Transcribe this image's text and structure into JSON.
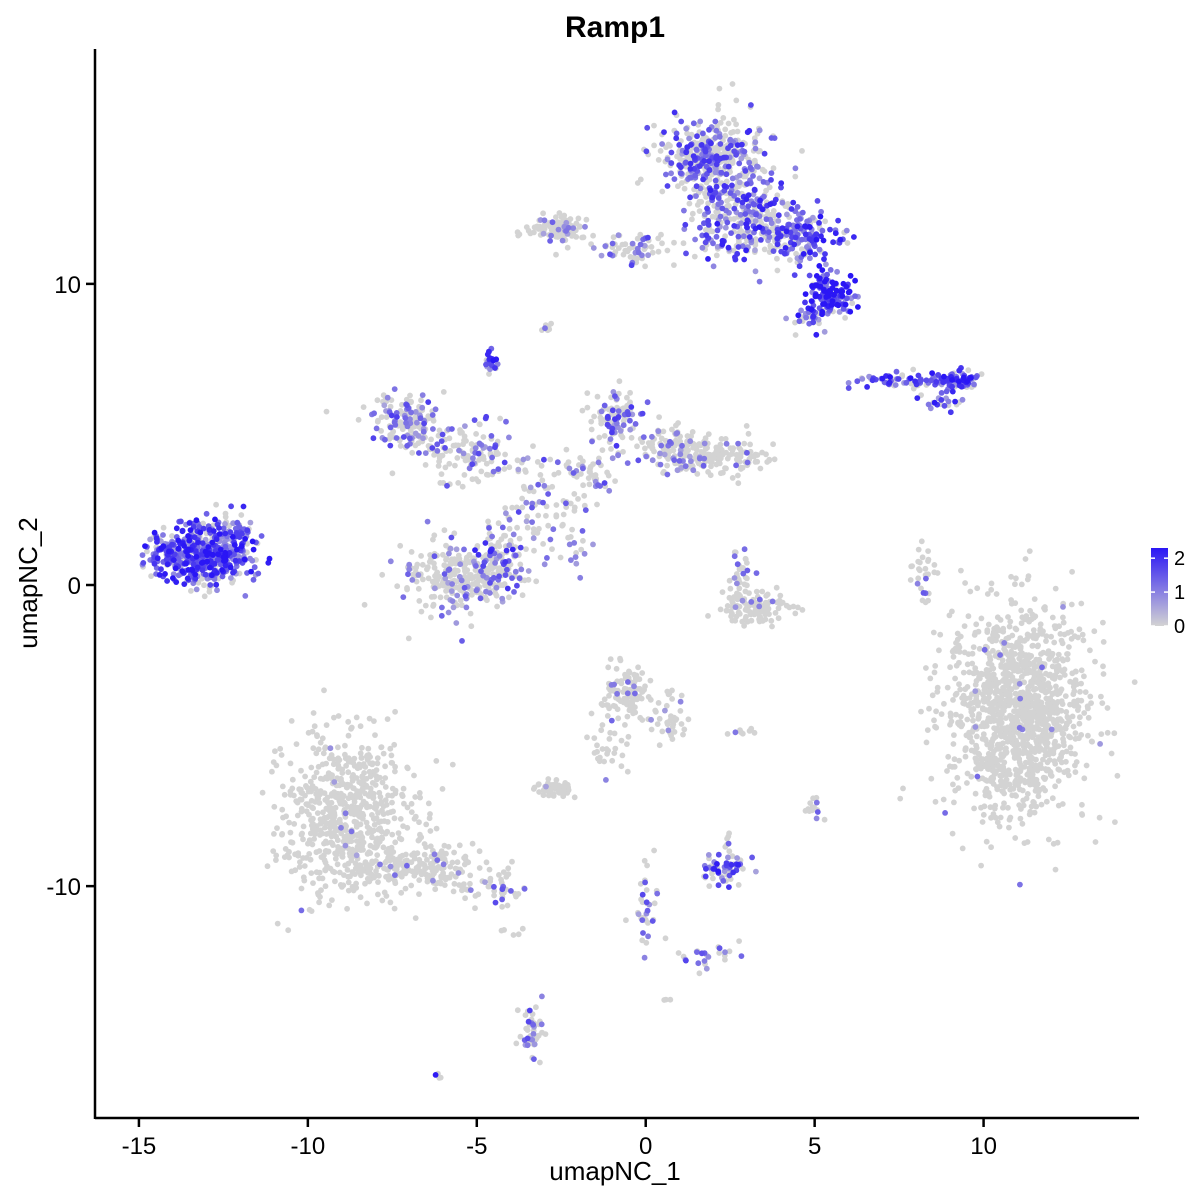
{
  "chart_data": {
    "type": "scatter",
    "title": "Ramp1",
    "xlabel": "umapNC_1",
    "ylabel": "umapNC_2",
    "xlim": [
      -16.3,
      14.6
    ],
    "ylim": [
      -17.7,
      17.8
    ],
    "x_ticks": [
      -15,
      -10,
      -5,
      0,
      5,
      10
    ],
    "x_tick_labels": [
      "-15",
      "-10",
      "-5",
      "0",
      "5",
      "10"
    ],
    "y_ticks": [
      -10,
      0,
      10
    ],
    "y_tick_labels": [
      "-10",
      "0",
      "10"
    ],
    "grid": false,
    "legend": {
      "placement": "right",
      "type": "colorbar",
      "range": [
        0,
        2.3
      ],
      "ticks": [
        0,
        1,
        2
      ],
      "tick_labels": [
        "0",
        "1",
        "2"
      ],
      "low_color": "#d3d3d3",
      "high_color": "#2a16f5"
    },
    "clusters": [
      {
        "cx": 11.0,
        "cy": -4.2,
        "sx": 1.2,
        "sy": 2.0,
        "n": 1300,
        "expr": 0.01
      },
      {
        "cx": -8.8,
        "cy": -7.6,
        "sx": 1.1,
        "sy": 1.6,
        "n": 650,
        "expr": 0.01
      },
      {
        "cx": -6.8,
        "cy": -9.4,
        "sx": 1.3,
        "sy": 0.5,
        "n": 200,
        "expr": 0.05
      },
      {
        "cx": -4.5,
        "cy": -10.1,
        "sx": 0.5,
        "sy": 0.3,
        "n": 40,
        "expr": 0.35
      },
      {
        "cx": -13.2,
        "cy": 1.0,
        "sx": 0.85,
        "sy": 0.55,
        "n": 500,
        "expr": 0.75
      },
      {
        "cx": -12.2,
        "cy": 1.6,
        "sx": 0.4,
        "sy": 0.5,
        "n": 60,
        "expr": 0.5
      },
      {
        "cx": 1.9,
        "cy": 14.2,
        "sx": 0.9,
        "sy": 0.75,
        "n": 420,
        "expr": 0.45
      },
      {
        "cx": 2.9,
        "cy": 12.2,
        "sx": 0.9,
        "sy": 0.8,
        "n": 300,
        "expr": 0.55
      },
      {
        "cx": 4.6,
        "cy": 11.6,
        "sx": 0.7,
        "sy": 0.5,
        "n": 150,
        "expr": 0.7
      },
      {
        "cx": 5.4,
        "cy": 9.7,
        "sx": 0.4,
        "sy": 0.35,
        "n": 130,
        "expr": 0.95
      },
      {
        "cx": 4.8,
        "cy": 8.9,
        "sx": 0.35,
        "sy": 0.3,
        "n": 40,
        "expr": 0.75
      },
      {
        "cx": -2.6,
        "cy": 11.8,
        "sx": 0.5,
        "sy": 0.25,
        "n": 130,
        "expr": 0.12
      },
      {
        "cx": -0.5,
        "cy": 11.2,
        "sx": 1.0,
        "sy": 0.3,
        "n": 70,
        "expr": 0.3
      },
      {
        "cx": 9.2,
        "cy": 6.8,
        "sx": 0.4,
        "sy": 0.2,
        "n": 80,
        "expr": 0.8
      },
      {
        "cx": 7.6,
        "cy": 6.8,
        "sx": 0.8,
        "sy": 0.15,
        "n": 60,
        "expr": 0.65
      },
      {
        "cx": 8.8,
        "cy": 6.1,
        "sx": 0.4,
        "sy": 0.2,
        "n": 20,
        "expr": 0.6
      },
      {
        "cx": -4.6,
        "cy": 7.4,
        "sx": 0.12,
        "sy": 0.18,
        "n": 25,
        "expr": 0.7
      },
      {
        "cx": -7.0,
        "cy": 5.4,
        "sx": 0.6,
        "sy": 0.55,
        "n": 160,
        "expr": 0.35
      },
      {
        "cx": -5.2,
        "cy": 4.3,
        "sx": 0.9,
        "sy": 0.6,
        "n": 120,
        "expr": 0.3
      },
      {
        "cx": -5.5,
        "cy": 0.3,
        "sx": 1.0,
        "sy": 0.75,
        "n": 280,
        "expr": 0.18
      },
      {
        "cx": -4.3,
        "cy": 0.8,
        "sx": 0.4,
        "sy": 0.7,
        "n": 80,
        "expr": 0.5
      },
      {
        "cx": -3.3,
        "cy": 2.5,
        "sx": 0.6,
        "sy": 1.0,
        "n": 70,
        "expr": 0.2
      },
      {
        "cx": -0.9,
        "cy": 5.6,
        "sx": 0.45,
        "sy": 0.55,
        "n": 100,
        "expr": 0.4
      },
      {
        "cx": -1.8,
        "cy": 3.6,
        "sx": 0.6,
        "sy": 0.6,
        "n": 60,
        "expr": 0.3
      },
      {
        "cx": 1.8,
        "cy": 4.3,
        "sx": 1.0,
        "sy": 0.35,
        "n": 200,
        "expr": 0.12
      },
      {
        "cx": 0.6,
        "cy": 4.7,
        "sx": 0.5,
        "sy": 0.4,
        "n": 60,
        "expr": 0.3
      },
      {
        "cx": -2.2,
        "cy": 1.3,
        "sx": 0.5,
        "sy": 0.4,
        "n": 20,
        "expr": 0.35
      },
      {
        "cx": 3.3,
        "cy": -0.8,
        "sx": 0.6,
        "sy": 0.3,
        "n": 120,
        "expr": 0.03
      },
      {
        "cx": 2.8,
        "cy": 0.5,
        "sx": 0.25,
        "sy": 0.55,
        "n": 30,
        "expr": 0.2
      },
      {
        "cx": 8.2,
        "cy": 0.4,
        "sx": 0.2,
        "sy": 0.55,
        "n": 30,
        "expr": 0.2
      },
      {
        "cx": -0.5,
        "cy": -3.6,
        "sx": 0.4,
        "sy": 0.45,
        "n": 110,
        "expr": 0.05
      },
      {
        "cx": 0.7,
        "cy": -4.5,
        "sx": 0.35,
        "sy": 0.5,
        "n": 40,
        "expr": 0.05
      },
      {
        "cx": -2.7,
        "cy": -6.8,
        "sx": 0.3,
        "sy": 0.15,
        "n": 60,
        "expr": 0.02
      },
      {
        "cx": -1.2,
        "cy": -5.5,
        "sx": 0.4,
        "sy": 0.6,
        "n": 30,
        "expr": 0.02
      },
      {
        "cx": 2.3,
        "cy": -9.5,
        "sx": 0.4,
        "sy": 0.25,
        "n": 60,
        "expr": 0.6
      },
      {
        "cx": 2.5,
        "cy": -8.7,
        "sx": 0.1,
        "sy": 0.3,
        "n": 10,
        "expr": 0.1
      },
      {
        "cx": 0.0,
        "cy": -10.5,
        "sx": 0.25,
        "sy": 0.8,
        "n": 35,
        "expr": 0.3
      },
      {
        "cx": 1.8,
        "cy": -12.3,
        "sx": 0.6,
        "sy": 0.25,
        "n": 25,
        "expr": 0.35
      },
      {
        "cx": -3.4,
        "cy": -14.8,
        "sx": 0.2,
        "sy": 0.55,
        "n": 45,
        "expr": 0.35
      },
      {
        "cx": 5.0,
        "cy": -7.5,
        "sx": 0.15,
        "sy": 0.3,
        "n": 15,
        "expr": 0.15
      },
      {
        "cx": -2.9,
        "cy": 8.5,
        "sx": 0.1,
        "sy": 0.12,
        "n": 8,
        "expr": 0.1
      },
      {
        "cx": 2.8,
        "cy": -4.9,
        "sx": 0.25,
        "sy": 0.08,
        "n": 8,
        "expr": 0.5
      },
      {
        "cx": -6.1,
        "cy": -16.3,
        "sx": 0.08,
        "sy": 0.06,
        "n": 4,
        "expr": 0.6
      },
      {
        "cx": -4.0,
        "cy": -11.5,
        "sx": 0.4,
        "sy": 0.1,
        "n": 5,
        "expr": 0.05
      },
      {
        "cx": 0.6,
        "cy": -13.8,
        "sx": 0.08,
        "sy": 0.06,
        "n": 3,
        "expr": 0.0
      }
    ]
  }
}
